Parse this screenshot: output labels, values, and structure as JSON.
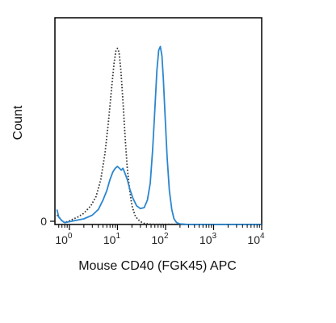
{
  "chart_data": {
    "type": "line",
    "xlabel": "Mouse CD40 (FGK45) APC",
    "ylabel": "Count",
    "x_scale": "log",
    "xlim": [
      0.5,
      10000
    ],
    "x_ticks": [
      {
        "value": 1,
        "base": "10",
        "exp": "0"
      },
      {
        "value": 10,
        "base": "10",
        "exp": "1"
      },
      {
        "value": 100,
        "base": "10",
        "exp": "2"
      },
      {
        "value": 1000,
        "base": "10",
        "exp": "3"
      },
      {
        "value": 10000,
        "base": "10",
        "exp": "4"
      }
    ],
    "y_ticks": [
      {
        "value": 0,
        "label": "0"
      }
    ],
    "ylim": [
      0,
      100
    ],
    "grid": false,
    "series": [
      {
        "style": "dotted",
        "color": "#333333",
        "points": [
          [
            0.55,
            5
          ],
          [
            0.6,
            4
          ],
          [
            0.7,
            2
          ],
          [
            0.8,
            1
          ],
          [
            1.0,
            2
          ],
          [
            1.5,
            4
          ],
          [
            2.0,
            6
          ],
          [
            2.8,
            10
          ],
          [
            3.6,
            15
          ],
          [
            4.5,
            24
          ],
          [
            5.5,
            38
          ],
          [
            6.5,
            55
          ],
          [
            7.5,
            72
          ],
          [
            8.5,
            86
          ],
          [
            9.3,
            93
          ],
          [
            10.0,
            94
          ],
          [
            10.8,
            92
          ],
          [
            11.8,
            82
          ],
          [
            13.0,
            66
          ],
          [
            14.5,
            46
          ],
          [
            16.0,
            30
          ],
          [
            18.0,
            18
          ],
          [
            20.0,
            10
          ],
          [
            23.0,
            5
          ],
          [
            26.0,
            3
          ],
          [
            30.0,
            1.5
          ],
          [
            36.0,
            0.6
          ],
          [
            45.0,
            0.2
          ],
          [
            60.0,
            0.1
          ],
          [
            100.0,
            0.1
          ],
          [
            10000,
            0
          ]
        ]
      },
      {
        "style": "solid",
        "color": "#2b86cf",
        "points": [
          [
            0.55,
            8
          ],
          [
            0.6,
            4
          ],
          [
            0.7,
            2
          ],
          [
            0.8,
            1
          ],
          [
            1.0,
            1.5
          ],
          [
            2.0,
            3
          ],
          [
            3.0,
            5
          ],
          [
            4.0,
            8
          ],
          [
            5.0,
            13
          ],
          [
            6.0,
            18
          ],
          [
            7.0,
            24
          ],
          [
            8.0,
            28
          ],
          [
            9.0,
            30
          ],
          [
            10.0,
            31
          ],
          [
            11.0,
            30
          ],
          [
            12.0,
            29
          ],
          [
            13.0,
            30
          ],
          [
            14.0,
            28
          ],
          [
            16.0,
            24
          ],
          [
            18.0,
            19
          ],
          [
            21.0,
            14
          ],
          [
            25.0,
            10
          ],
          [
            30.0,
            8.5
          ],
          [
            36.0,
            9
          ],
          [
            42.0,
            13
          ],
          [
            48.0,
            22
          ],
          [
            54.0,
            40
          ],
          [
            60.0,
            62
          ],
          [
            66.0,
            82
          ],
          [
            72.0,
            93
          ],
          [
            78.0,
            95
          ],
          [
            84.0,
            90
          ],
          [
            90.0,
            78
          ],
          [
            98.0,
            58
          ],
          [
            108.0,
            36
          ],
          [
            120.0,
            18
          ],
          [
            135.0,
            8
          ],
          [
            150.0,
            3
          ],
          [
            170.0,
            1
          ],
          [
            200.0,
            0.3
          ],
          [
            300.0,
            0
          ],
          [
            10000,
            0
          ]
        ]
      }
    ]
  }
}
